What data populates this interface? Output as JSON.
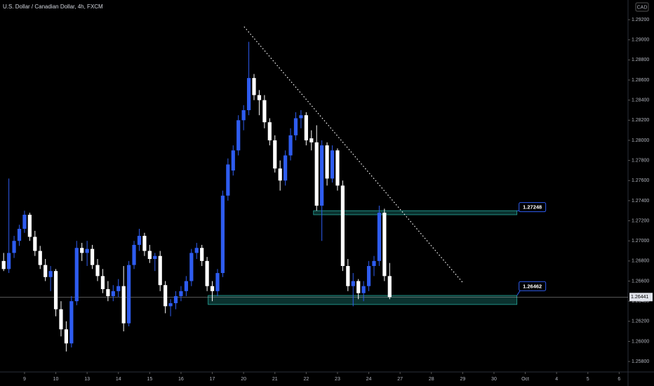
{
  "chart_data": {
    "type": "candlestick",
    "title": "U.S. Dollar / Canadian Dollar, 4h, FXCM",
    "currency": "CAD",
    "up_color": "#2e5cf0",
    "down_color": "#ffffff",
    "open": [
      1.268,
      1.2672,
      1.2688,
      1.27,
      1.2712,
      1.2726,
      1.2704,
      1.269,
      1.2676,
      1.2664,
      1.267,
      1.2632,
      1.2612,
      1.2598,
      1.264,
      1.2693,
      1.2688,
      1.2692,
      1.2676,
      1.2665,
      1.2652,
      1.2645,
      1.265,
      1.2655,
      1.2618,
      1.2676,
      1.2696,
      1.2705,
      1.269,
      1.2682,
      1.2685,
      1.2656,
      1.2635,
      1.2638,
      1.2645,
      1.265,
      1.266,
      1.2688,
      1.2693,
      1.268,
      1.2655,
      1.265,
      1.2668,
      1.2745,
      1.277,
      1.279,
      1.282,
      1.283,
      1.2862,
      1.2845,
      1.284,
      1.2818,
      1.28,
      1.2772,
      1.276,
      1.2785,
      1.2805,
      1.2822,
      1.2825,
      1.2802,
      1.2798,
      1.2735,
      1.2795,
      1.2762,
      1.279,
      1.2755,
      1.2675,
      1.2655,
      1.266,
      1.2648,
      1.2655,
      1.2675,
      1.268,
      1.2728,
      1.2665
    ],
    "high": [
      1.2688,
      1.2762,
      1.2705,
      1.2716,
      1.273,
      1.2728,
      1.271,
      1.2695,
      1.2682,
      1.2675,
      1.2672,
      1.264,
      1.262,
      1.2645,
      1.27,
      1.2698,
      1.27,
      1.2696,
      1.2682,
      1.2672,
      1.266,
      1.2656,
      1.2662,
      1.2675,
      1.268,
      1.27,
      1.2712,
      1.2708,
      1.2696,
      1.2688,
      1.269,
      1.266,
      1.2642,
      1.265,
      1.2655,
      1.2665,
      1.2692,
      1.2698,
      1.2696,
      1.2684,
      1.266,
      1.2672,
      1.275,
      1.2782,
      1.2795,
      1.2825,
      1.2835,
      1.2898,
      1.2866,
      1.285,
      1.2845,
      1.2822,
      1.2805,
      1.278,
      1.279,
      1.2812,
      1.2828,
      1.283,
      1.2828,
      1.281,
      1.2815,
      1.28,
      1.2798,
      1.2795,
      1.2792,
      1.276,
      1.2682,
      1.2668,
      1.2662,
      1.266,
      1.268,
      1.2685,
      1.2735,
      1.2732,
      1.2678
    ],
    "low": [
      1.267,
      1.2668,
      1.2683,
      1.2695,
      1.2708,
      1.27,
      1.2685,
      1.2672,
      1.266,
      1.265,
      1.2625,
      1.2605,
      1.259,
      1.2594,
      1.2636,
      1.268,
      1.2675,
      1.2672,
      1.266,
      1.2648,
      1.264,
      1.264,
      1.2644,
      1.261,
      1.2615,
      1.2672,
      1.269,
      1.2685,
      1.2678,
      1.267,
      1.265,
      1.2628,
      1.2625,
      1.2632,
      1.264,
      1.2645,
      1.2655,
      1.2682,
      1.2675,
      1.265,
      1.264,
      1.2645,
      1.2664,
      1.274,
      1.2765,
      1.2785,
      1.281,
      1.2825,
      1.284,
      1.2825,
      1.2812,
      1.2795,
      1.2768,
      1.275,
      1.2755,
      1.278,
      1.28,
      1.2812,
      1.2795,
      1.279,
      1.273,
      1.27,
      1.2755,
      1.2758,
      1.275,
      1.267,
      1.265,
      1.2635,
      1.2642,
      1.264,
      1.265,
      1.2665,
      1.2675,
      1.266,
      1.2642
    ],
    "close": [
      1.2672,
      1.2688,
      1.27,
      1.2712,
      1.2726,
      1.2704,
      1.269,
      1.2676,
      1.2664,
      1.267,
      1.2632,
      1.2612,
      1.2598,
      1.264,
      1.2693,
      1.2688,
      1.2692,
      1.2676,
      1.2665,
      1.2652,
      1.2645,
      1.265,
      1.2655,
      1.2618,
      1.2676,
      1.2696,
      1.2705,
      1.269,
      1.2682,
      1.2685,
      1.2656,
      1.2635,
      1.2638,
      1.2645,
      1.265,
      1.266,
      1.2688,
      1.2693,
      1.268,
      1.2655,
      1.265,
      1.2668,
      1.2745,
      1.2776,
      1.279,
      1.282,
      1.283,
      1.2862,
      1.2845,
      1.284,
      1.2818,
      1.28,
      1.2772,
      1.276,
      1.2785,
      1.2805,
      1.2822,
      1.2825,
      1.28,
      1.2798,
      1.2735,
      1.2795,
      1.2762,
      1.279,
      1.2755,
      1.2675,
      1.2655,
      1.266,
      1.2648,
      1.2655,
      1.2675,
      1.268,
      1.2728,
      1.2665,
      1.2644
    ],
    "xlim": [
      -0.7,
      119.7
    ],
    "xticks": [
      {
        "value": 4,
        "label": "9"
      },
      {
        "value": 10,
        "label": "10"
      },
      {
        "value": 16,
        "label": "13"
      },
      {
        "value": 22,
        "label": "14"
      },
      {
        "value": 28,
        "label": "15"
      },
      {
        "value": 34,
        "label": "16"
      },
      {
        "value": 40,
        "label": "17"
      },
      {
        "value": 46,
        "label": "20"
      },
      {
        "value": 52,
        "label": "21"
      },
      {
        "value": 58,
        "label": "22"
      },
      {
        "value": 64,
        "label": "23"
      },
      {
        "value": 70,
        "label": "24"
      },
      {
        "value": 76,
        "label": "27"
      },
      {
        "value": 82,
        "label": "28"
      },
      {
        "value": 88,
        "label": "29"
      },
      {
        "value": 94,
        "label": "30"
      },
      {
        "value": 100,
        "label": "Oct"
      },
      {
        "value": 106,
        "label": "4"
      },
      {
        "value": 112,
        "label": "5"
      },
      {
        "value": 118,
        "label": "6"
      }
    ],
    "ylim": [
      1.25696,
      1.29396
    ],
    "yticks": [
      {
        "value": 1.258,
        "label": "1.25800"
      },
      {
        "value": 1.26,
        "label": "1.26000"
      },
      {
        "value": 1.262,
        "label": "1.26200"
      },
      {
        "value": 1.264,
        "label": "1.26400"
      },
      {
        "value": 1.266,
        "label": "1.26600"
      },
      {
        "value": 1.268,
        "label": "1.26800"
      },
      {
        "value": 1.27,
        "label": "1.27000"
      },
      {
        "value": 1.272,
        "label": "1.27200"
      },
      {
        "value": 1.274,
        "label": "1.27400"
      },
      {
        "value": 1.276,
        "label": "1.27600"
      },
      {
        "value": 1.278,
        "label": "1.27800"
      },
      {
        "value": 1.28,
        "label": "1.28000"
      },
      {
        "value": 1.282,
        "label": "1.28200"
      },
      {
        "value": 1.284,
        "label": "1.28400"
      },
      {
        "value": 1.286,
        "label": "1.28600"
      },
      {
        "value": 1.288,
        "label": "1.28800"
      },
      {
        "value": 1.29,
        "label": "1.29000"
      },
      {
        "value": 1.292,
        "label": "1.29200"
      }
    ],
    "last_price": {
      "value": 1.26441,
      "label": "1.26441"
    },
    "trendline": {
      "x": [
        46.1,
        88.1
      ],
      "y": [
        1.2913,
        1.2658
      ],
      "color": "#ffffff"
    },
    "zones": [
      {
        "start": 59.4,
        "end": 98.4,
        "top": 1.273,
        "bottom": 1.2726,
        "label": {
          "value": 1.27248,
          "label": "1.27248"
        }
      },
      {
        "start": 39.2,
        "end": 98.4,
        "top": 1.26457,
        "bottom": 1.26367,
        "label": {
          "value": 1.26462,
          "label": "1.26462"
        }
      }
    ],
    "zone_color": "#26a69a"
  }
}
